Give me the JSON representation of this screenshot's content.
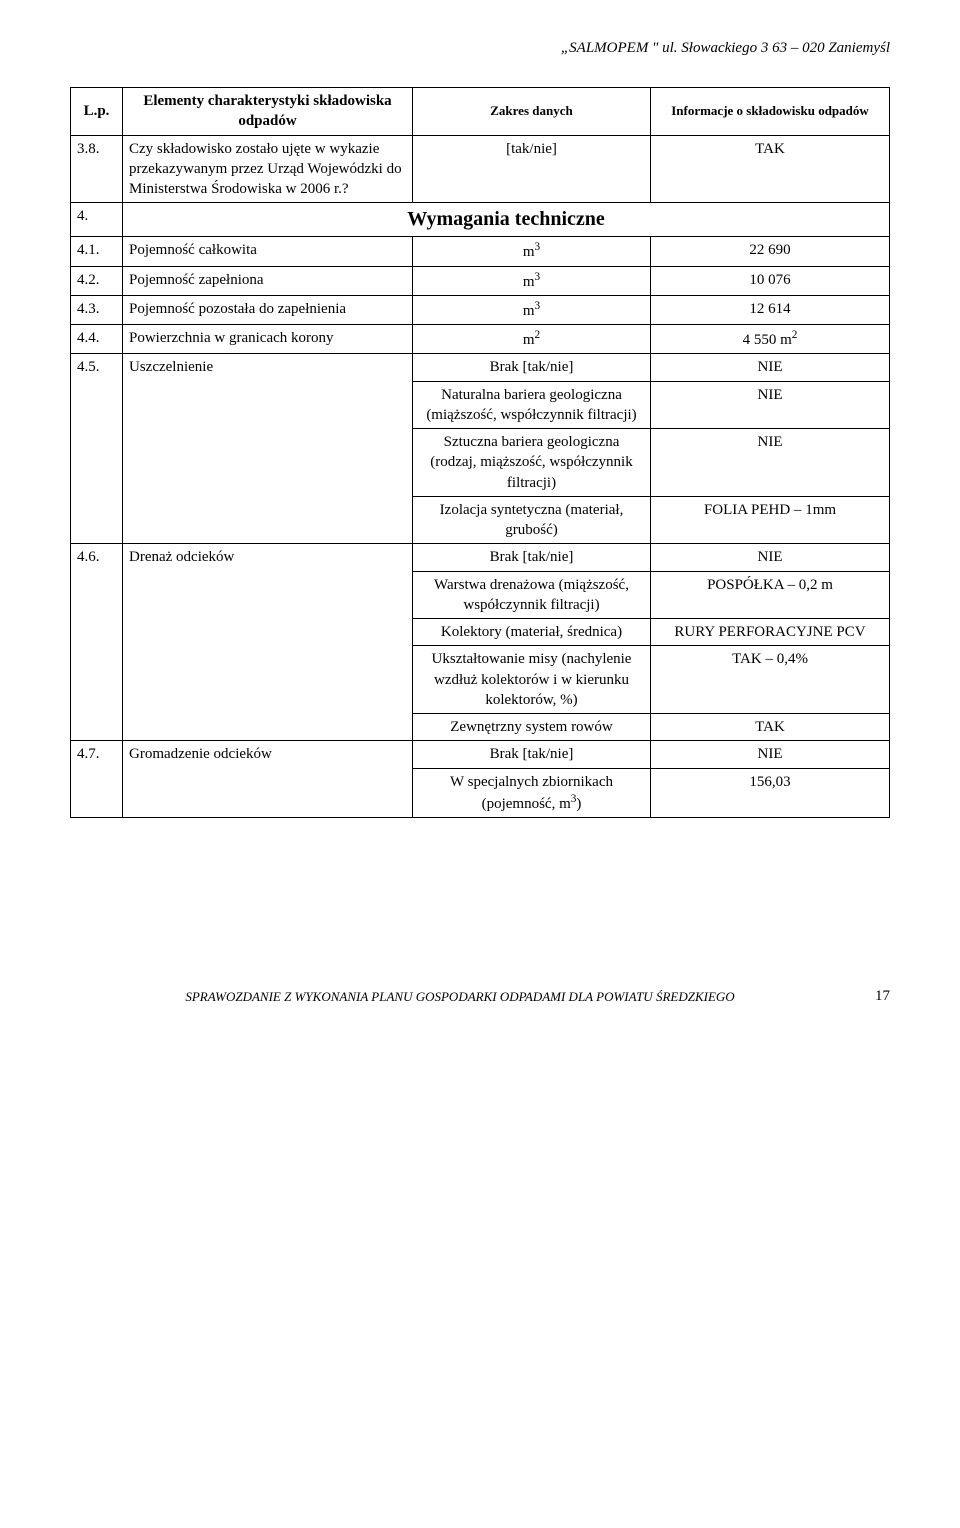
{
  "header": {
    "text": "„SALMOPEM \" ul. Słowackiego 3  63 – 020 Zaniemyśl"
  },
  "table": {
    "columns": {
      "lp": "L.p.",
      "el": "Elementy charakterystyki składowiska odpadów",
      "zd": "Zakres danych",
      "info": "Informacje o składowisku odpadów"
    },
    "row38": {
      "num": "3.8.",
      "label": "Czy składowisko zostało ujęte w wykazie przekazywanym przez Urząd Wojewódzki do Ministerstwa Środowiska w 2006 r.?",
      "zd": "[tak/nie]",
      "info": "TAK"
    },
    "section4": {
      "num": "4.",
      "title": "Wymagania techniczne"
    },
    "row41": {
      "num": "4.1.",
      "label": "Pojemność całkowita",
      "unit_prefix": "m",
      "unit_sup": "3",
      "info": "22 690"
    },
    "row42": {
      "num": "4.2.",
      "label": "Pojemność zapełniona",
      "unit_prefix": "m",
      "unit_sup": "3",
      "info": "10 076"
    },
    "row43": {
      "num": "4.3.",
      "label": "Pojemność pozostała do zapełnienia",
      "unit_prefix": "m",
      "unit_sup": "3",
      "info": "12 614"
    },
    "row44": {
      "num": "4.4.",
      "label": "Powierzchnia w granicach korony",
      "unit_prefix": "m",
      "unit_sup": "2",
      "info_prefix": "4 550 m",
      "info_sup": "2"
    },
    "row45": {
      "num": "4.5.",
      "label": "Uszczelnienie",
      "sub": [
        {
          "zd": "Brak [tak/nie]",
          "info": "NIE"
        },
        {
          "zd": "Naturalna bariera geologiczna (miąższość, współczynnik filtracji)",
          "info": "NIE"
        },
        {
          "zd": "Sztuczna bariera geologiczna (rodzaj, miąższość, współczynnik filtracji)",
          "info": "NIE"
        },
        {
          "zd": "Izolacja syntetyczna (materiał, grubość)",
          "info": "FOLIA PEHD – 1mm"
        }
      ]
    },
    "row46": {
      "num": "4.6.",
      "label": "Drenaż odcieków",
      "sub": [
        {
          "zd": "Brak [tak/nie]",
          "info": "NIE"
        },
        {
          "zd": "Warstwa drenażowa (miąższość, współczynnik filtracji)",
          "info": "POSPÓŁKA – 0,2 m"
        },
        {
          "zd": "Kolektory (materiał, średnica)",
          "info": "RURY PERFORACYJNE PCV"
        },
        {
          "zd": "Ukształtowanie misy (nachylenie wzdłuż kolektorów i w kierunku kolektorów, %)",
          "info": "TAK – 0,4%"
        },
        {
          "zd": "Zewnętrzny system rowów",
          "info": "TAK"
        }
      ]
    },
    "row47": {
      "num": "4.7.",
      "label": "Gromadzenie odcieków",
      "sub": [
        {
          "zd": "Brak [tak/nie]",
          "info": "NIE"
        },
        {
          "zd_prefix": "W specjalnych zbiornikach (pojemność, m",
          "zd_sup": "3",
          "zd_suffix": ")",
          "info": "156,03"
        }
      ]
    }
  },
  "footer": {
    "note": "SPRAWOZDANIE Z WYKONANIA PLANU GOSPODARKI ODPADAMI DLA POWIATU ŚREDZKIEGO",
    "page": "17"
  }
}
